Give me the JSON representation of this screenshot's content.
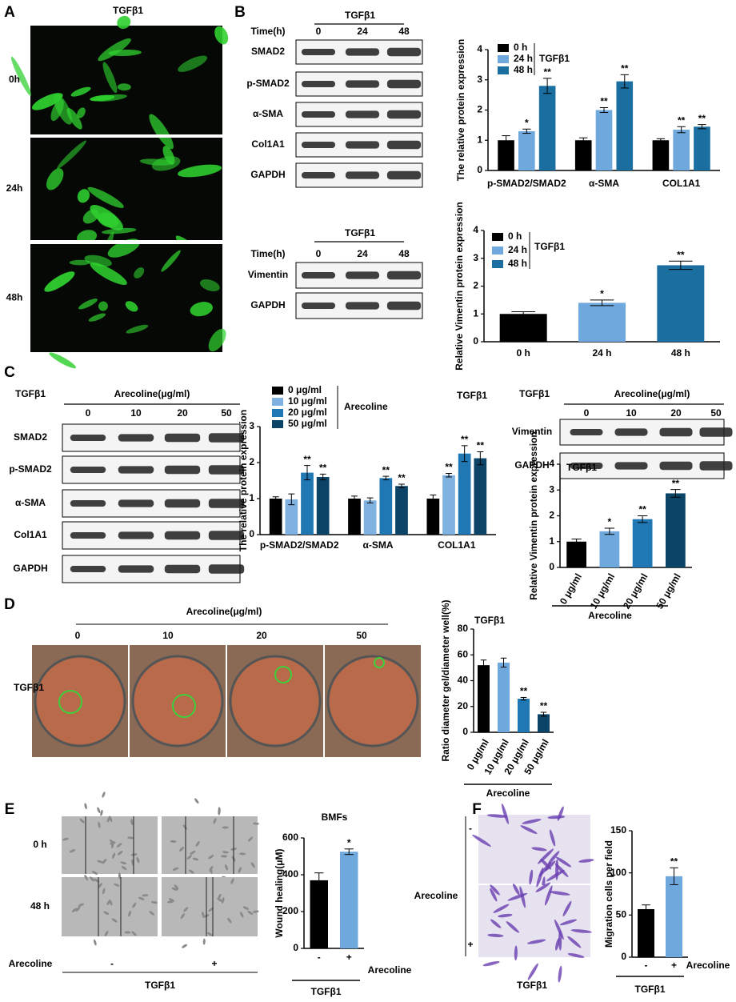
{
  "panel_labels": [
    "A",
    "B",
    "C",
    "D",
    "E",
    "F"
  ],
  "panel_a": {
    "title": "TGFβ1",
    "rows": [
      "0h",
      "24h",
      "48h"
    ]
  },
  "blots": [
    {
      "treatment": "TGFβ1",
      "header": "Time(h)",
      "lanes": [
        "0",
        "24",
        "48"
      ],
      "rows": [
        "SMAD2",
        "p-SMAD2",
        "α-SMA",
        "Col1A1",
        "GAPDH"
      ]
    },
    {
      "treatment": "TGFβ1",
      "header": "Time(h)",
      "lanes": [
        "0",
        "24",
        "48"
      ],
      "rows": [
        "Vimentin",
        "GAPDH"
      ]
    },
    {
      "treatment": "TGFβ1",
      "header": "Arecoline(μg/ml)",
      "lanes": [
        "0",
        "10",
        "20",
        "50"
      ],
      "rows": [
        "SMAD2",
        "p-SMAD2",
        "α-SMA",
        "Col1A1",
        "GAPDH"
      ]
    },
    {
      "treatment": "TGFβ1",
      "header": "Arecoline(μg/ml)",
      "lanes": [
        "0",
        "10",
        "20",
        "50"
      ],
      "rows": [
        "Vimentin",
        "GAPDH"
      ]
    }
  ],
  "panel_d": {
    "header": "Arecoline(μg/ml)",
    "lanes": [
      "0",
      "10",
      "20",
      "50"
    ],
    "row_label": "TGFβ1"
  },
  "panel_e": {
    "rows": [
      "0 h",
      "48 h"
    ],
    "treatment": "Arecoline",
    "columns": [
      "-",
      "+"
    ],
    "footer": "TGFβ1"
  },
  "panel_f": {
    "treatment": "Arecoline",
    "rows": [
      "-",
      "+"
    ],
    "footer": "TGFβ1"
  },
  "chart_data": [
    {
      "type": "bar",
      "ylabel": "The relative protein expression",
      "categories": [
        "p-SMAD2/SMAD2",
        "α-SMA",
        "COL1A1"
      ],
      "series": [
        {
          "name": "0 h",
          "color": "#000000",
          "values": [
            1.0,
            1.0,
            1.0
          ],
          "errors": [
            0.15,
            0.08,
            0.05
          ],
          "significance": [
            null,
            null,
            null
          ]
        },
        {
          "name": "24 h",
          "color": "#6fa8dc",
          "values": [
            1.3,
            2.0,
            1.35
          ],
          "errors": [
            0.07,
            0.08,
            0.1
          ],
          "significance": [
            "*",
            "**",
            "**"
          ]
        },
        {
          "name": "48 h",
          "color": "#1a6fa0",
          "values": [
            2.8,
            2.95,
            1.45
          ],
          "errors": [
            0.25,
            0.22,
            0.07
          ],
          "significance": [
            "**",
            "**",
            "**"
          ]
        }
      ],
      "ylim": [
        0,
        4
      ],
      "yticks": [
        0,
        1,
        2,
        3,
        4
      ],
      "legend": true,
      "legend_title": "TGFβ1",
      "grid": false
    },
    {
      "type": "bar",
      "ylabel": "Relative Vimentin protein expression",
      "categories": [
        "0 h",
        "24 h",
        "48 h"
      ],
      "values": [
        1.0,
        1.4,
        2.75
      ],
      "errors": [
        0.08,
        0.1,
        0.15
      ],
      "significance": [
        null,
        "*",
        "**"
      ],
      "colors": [
        "#000000",
        "#6fa8dc",
        "#1a6fa0"
      ],
      "ylim": [
        0,
        4
      ],
      "yticks": [
        0,
        1,
        2,
        3,
        4
      ],
      "legend": true,
      "legend_title": "TGFβ1",
      "grid": false
    },
    {
      "type": "bar",
      "title": "TGFβ1",
      "ylabel": "The relative protein expression",
      "categories": [
        "p-SMAD2/SMAD2",
        "α-SMA",
        "COL1A1"
      ],
      "series": [
        {
          "name": "0 μg/ml",
          "color": "#000000",
          "values": [
            1.0,
            1.0,
            1.0
          ],
          "errors": [
            0.05,
            0.07,
            0.1
          ],
          "significance": [
            null,
            null,
            null
          ]
        },
        {
          "name": "10 μg/ml",
          "color": "#7fb2e0",
          "values": [
            0.98,
            0.95,
            1.65
          ],
          "errors": [
            0.15,
            0.07,
            0.05
          ],
          "significance": [
            null,
            null,
            "**"
          ]
        },
        {
          "name": "20 μg/ml",
          "color": "#1f78b4",
          "values": [
            1.72,
            1.57,
            2.25
          ],
          "errors": [
            0.2,
            0.05,
            0.22
          ],
          "significance": [
            "**",
            "**",
            "**"
          ]
        },
        {
          "name": "50 μg/ml",
          "color": "#0b4466",
          "values": [
            1.6,
            1.35,
            2.12
          ],
          "errors": [
            0.08,
            0.05,
            0.18
          ],
          "significance": [
            "**",
            "**",
            "**"
          ]
        }
      ],
      "ylim": [
        0,
        3
      ],
      "yticks": [
        0,
        1,
        2,
        3
      ],
      "legend": true,
      "legend_title": "Arecoline",
      "grid": false
    },
    {
      "type": "bar",
      "title": "TGFβ1",
      "ylabel": "Relative Vimentin protein expression",
      "categories": [
        "0 μg/ml",
        "10 μg/ml",
        "20 μg/ml",
        "50 μg/ml"
      ],
      "values": [
        1.0,
        1.4,
        1.87,
        2.87
      ],
      "errors": [
        0.1,
        0.12,
        0.13,
        0.15
      ],
      "significance": [
        null,
        "*",
        "**",
        "**"
      ],
      "colors": [
        "#000000",
        "#6fa8dc",
        "#1f78b4",
        "#0b4466"
      ],
      "ylim": [
        0,
        4
      ],
      "yticks": [
        0,
        1,
        2,
        3,
        4
      ],
      "group_label": "Arecoline",
      "grid": false
    },
    {
      "type": "bar",
      "title": "TGFβ1",
      "ylabel": "Ratio diameter gel/diameter well(%)",
      "categories": [
        "0 μg/ml",
        "10 μg/ml",
        "20 μg/ml",
        "50 μg/ml"
      ],
      "values": [
        52,
        54,
        26,
        14
      ],
      "errors": [
        4,
        3.5,
        1,
        1.5
      ],
      "significance": [
        null,
        null,
        "**",
        "**"
      ],
      "colors": [
        "#000000",
        "#6fa8dc",
        "#1f78b4",
        "#0b4466"
      ],
      "ylim": [
        0,
        80
      ],
      "yticks": [
        0,
        20,
        40,
        60,
        80
      ],
      "group_label": "Arecoline",
      "grid": false
    },
    {
      "type": "bar",
      "title": "BMFs",
      "ylabel": "Wound healing(μM)",
      "categories": [
        "-",
        "+"
      ],
      "values": [
        370,
        525
      ],
      "errors": [
        40,
        15
      ],
      "significance": [
        null,
        "*"
      ],
      "colors": [
        "#000000",
        "#6fa8dc"
      ],
      "ylim": [
        0,
        600
      ],
      "yticks": [
        0,
        200,
        400,
        600
      ],
      "side_label": "Arecoline",
      "group_label": "TGFβ1",
      "grid": false
    },
    {
      "type": "bar",
      "ylabel": "Migration cells per field",
      "categories": [
        "-",
        "+"
      ],
      "values": [
        57,
        96
      ],
      "errors": [
        5,
        10
      ],
      "significance": [
        null,
        "**"
      ],
      "colors": [
        "#000000",
        "#6fa8dc"
      ],
      "ylim": [
        0,
        150
      ],
      "yticks": [
        0,
        50,
        100,
        150
      ],
      "side_label": "Arecoline",
      "group_label": "TGFβ1",
      "grid": false
    }
  ]
}
